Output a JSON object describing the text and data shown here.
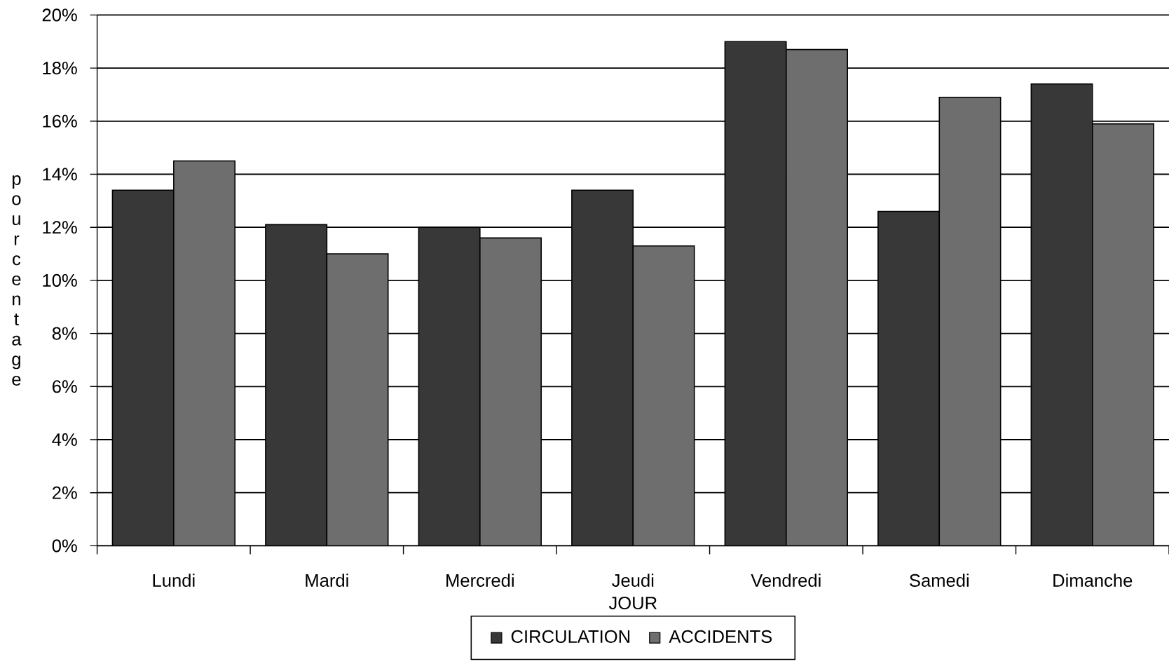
{
  "chart_data": {
    "type": "bar",
    "xlabel": "JOUR",
    "ylabel": "pourcentage",
    "categories": [
      "Lundi",
      "Mardi",
      "Mercredi",
      "Jeudi",
      "Vendredi",
      "Samedi",
      "Dimanche"
    ],
    "series": [
      {
        "name": "CIRCULATION",
        "color": "#383838",
        "values": [
          13.4,
          12.1,
          12.0,
          13.4,
          19.0,
          12.6,
          17.4
        ]
      },
      {
        "name": "ACCIDENTS",
        "color": "#6e6e6e",
        "values": [
          14.5,
          11.0,
          11.6,
          11.3,
          18.7,
          16.9,
          15.9
        ]
      }
    ],
    "ylim": [
      0,
      20
    ],
    "yticks": [
      {
        "value": 0,
        "label": "0%"
      },
      {
        "value": 2,
        "label": "2%"
      },
      {
        "value": 4,
        "label": "4%"
      },
      {
        "value": 6,
        "label": "6%"
      },
      {
        "value": 8,
        "label": "8%"
      },
      {
        "value": 10,
        "label": "10%"
      },
      {
        "value": 12,
        "label": "12%"
      },
      {
        "value": 14,
        "label": "14%"
      },
      {
        "value": 16,
        "label": "16%"
      },
      {
        "value": 18,
        "label": "18%"
      },
      {
        "value": 20,
        "label": "20%"
      }
    ],
    "grid": "y",
    "legend": "bottom"
  }
}
